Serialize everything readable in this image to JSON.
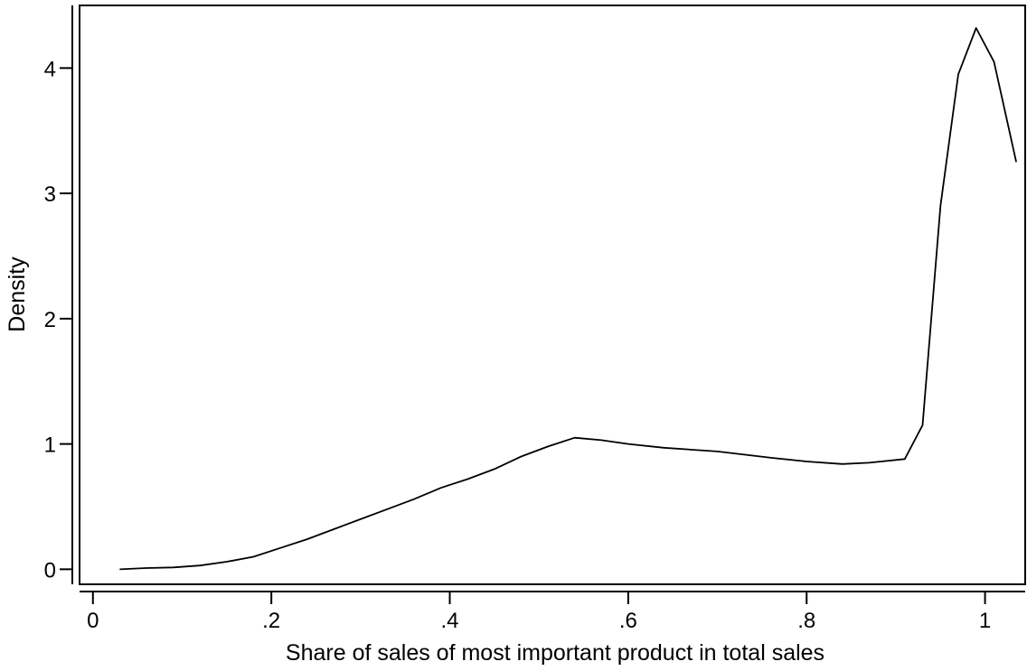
{
  "chart_data": {
    "type": "line",
    "title": "",
    "xlabel": "Share of sales of most important product in total sales",
    "ylabel": "Density",
    "xlim": [
      -0.015,
      1.045
    ],
    "ylim": [
      -0.12,
      4.5
    ],
    "grid": false,
    "legend": "none",
    "x_ticks": [
      {
        "value": 0,
        "label": "0"
      },
      {
        "value": 0.2,
        "label": ".2"
      },
      {
        "value": 0.4,
        "label": ".4"
      },
      {
        "value": 0.6,
        "label": ".6"
      },
      {
        "value": 0.8,
        "label": ".8"
      },
      {
        "value": 1,
        "label": "1"
      }
    ],
    "y_ticks": [
      {
        "value": 0,
        "label": "0"
      },
      {
        "value": 1,
        "label": "1"
      },
      {
        "value": 2,
        "label": "2"
      },
      {
        "value": 3,
        "label": "3"
      },
      {
        "value": 4,
        "label": "4"
      }
    ],
    "series": [
      {
        "color": "#000000",
        "x": [
          0.03,
          0.06,
          0.09,
          0.12,
          0.15,
          0.18,
          0.21,
          0.24,
          0.27,
          0.3,
          0.33,
          0.36,
          0.39,
          0.42,
          0.45,
          0.48,
          0.51,
          0.54,
          0.57,
          0.6,
          0.64,
          0.7,
          0.76,
          0.8,
          0.84,
          0.87,
          0.91,
          0.93,
          0.95,
          0.97,
          0.99,
          1.01,
          1.035
        ],
        "y": [
          0.0,
          0.01,
          0.015,
          0.03,
          0.06,
          0.1,
          0.17,
          0.24,
          0.32,
          0.4,
          0.48,
          0.56,
          0.65,
          0.72,
          0.8,
          0.9,
          0.98,
          1.05,
          1.03,
          1.0,
          0.97,
          0.94,
          0.89,
          0.86,
          0.84,
          0.85,
          0.88,
          1.15,
          2.9,
          3.95,
          4.32,
          4.05,
          3.25
        ]
      }
    ]
  }
}
